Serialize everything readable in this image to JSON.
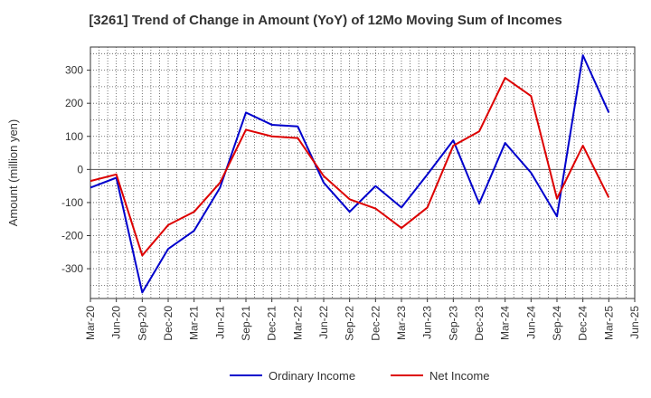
{
  "chart_data": {
    "type": "line",
    "title": "[3261]  Trend of Change in Amount (YoY) of 12Mo Moving Sum of Incomes",
    "ylabel": "Amount (million yen)",
    "xlabel": "",
    "ylim": [
      -390,
      370
    ],
    "yticks": [
      300,
      200,
      100,
      0,
      -100,
      -200,
      -300
    ],
    "grid": true,
    "legend_position": "bottom",
    "x": [
      "Mar-20",
      "Jun-20",
      "Sep-20",
      "Dec-20",
      "Mar-21",
      "Jun-21",
      "Sep-21",
      "Dec-21",
      "Mar-22",
      "Jun-22",
      "Sep-22",
      "Dec-22",
      "Mar-23",
      "Jun-23",
      "Sep-23",
      "Dec-23",
      "Mar-24",
      "Jun-24",
      "Sep-24",
      "Dec-24",
      "Mar-25",
      "Jun-25"
    ],
    "series": [
      {
        "name": "Ordinary Income",
        "color": "#0000cc",
        "values": [
          -55,
          -25,
          -372,
          -240,
          -185,
          -55,
          172,
          135,
          130,
          -40,
          -128,
          -50,
          -115,
          -15,
          88,
          -103,
          80,
          -10,
          -142,
          345,
          172,
          null
        ]
      },
      {
        "name": "Net Income",
        "color": "#dd0000",
        "values": [
          -35,
          -15,
          -260,
          -168,
          -128,
          -40,
          120,
          100,
          95,
          -20,
          -90,
          -118,
          -177,
          -115,
          72,
          115,
          277,
          222,
          -88,
          72,
          -85,
          null
        ]
      }
    ]
  }
}
